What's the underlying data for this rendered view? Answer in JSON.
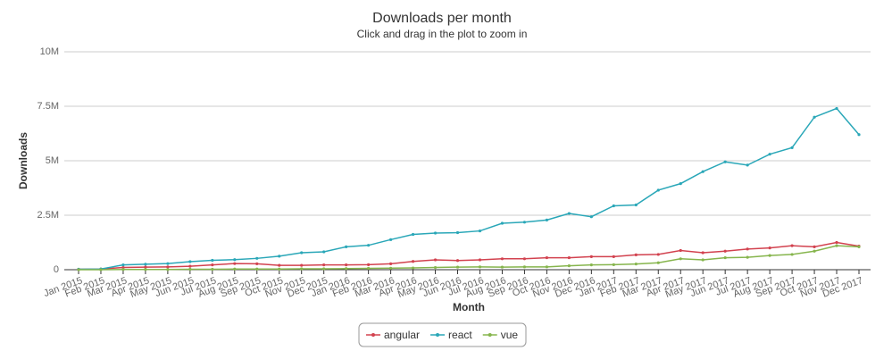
{
  "chart_data": {
    "type": "line",
    "title": "Downloads per month",
    "subtitle": "Click and drag in the plot to zoom in",
    "y_label": "Downloads",
    "x_label": "Month",
    "categories": [
      "Jan 2015",
      "Feb 2015",
      "Mar 2015",
      "Apr 2015",
      "May 2015",
      "Jun 2015",
      "Jul 2015",
      "Aug 2015",
      "Sep 2015",
      "Oct 2015",
      "Nov 2015",
      "Dec 2015",
      "Jan 2016",
      "Feb 2016",
      "Mar 2016",
      "Apr 2016",
      "May 2016",
      "Jun 2016",
      "Jul 2016",
      "Aug 2016",
      "Sep 2016",
      "Oct 2016",
      "Nov 2016",
      "Dec 2016",
      "Jan 2017",
      "Feb 2017",
      "Mar 2017",
      "Apr 2017",
      "May 2017",
      "Jun 2017",
      "Jul 2017",
      "Aug 2017",
      "Sep 2017",
      "Oct 2017",
      "Nov 2017",
      "Dec 2017"
    ],
    "series": [
      {
        "name": "angular",
        "color": "#d2424f",
        "values": [
          20000,
          30000,
          100000,
          120000,
          130000,
          160000,
          220000,
          280000,
          270000,
          200000,
          200000,
          220000,
          220000,
          230000,
          270000,
          380000,
          450000,
          420000,
          450000,
          500000,
          500000,
          550000,
          550000,
          600000,
          600000,
          680000,
          700000,
          880000,
          780000,
          850000,
          950000,
          1000000,
          1100000,
          1050000,
          1250000,
          1080000
        ]
      },
      {
        "name": "react",
        "color": "#2aa7b8",
        "values": [
          20000,
          30000,
          220000,
          250000,
          280000,
          370000,
          430000,
          460000,
          520000,
          620000,
          780000,
          820000,
          1050000,
          1120000,
          1380000,
          1620000,
          1680000,
          1700000,
          1780000,
          2130000,
          2180000,
          2280000,
          2580000,
          2430000,
          2930000,
          2970000,
          3650000,
          3950000,
          4500000,
          4950000,
          4800000,
          5300000,
          5600000,
          7000000,
          7400000,
          6200000
        ]
      },
      {
        "name": "vue",
        "color": "#86b54d",
        "values": [
          0,
          0,
          10000,
          10000,
          10000,
          20000,
          20000,
          30000,
          30000,
          30000,
          40000,
          40000,
          50000,
          60000,
          70000,
          80000,
          100000,
          120000,
          130000,
          120000,
          130000,
          130000,
          180000,
          220000,
          230000,
          260000,
          320000,
          500000,
          450000,
          550000,
          570000,
          650000,
          700000,
          850000,
          1100000,
          1050000
        ]
      }
    ],
    "ylim": [
      0,
      10000000
    ],
    "yticks": [
      0,
      {
        "value": 2500000,
        "label": "2.5M"
      },
      {
        "value": 5000000,
        "label": "5M"
      },
      {
        "value": 7500000,
        "label": "7.5M"
      },
      {
        "value": 10000000,
        "label": "10M"
      }
    ],
    "grid": true
  }
}
